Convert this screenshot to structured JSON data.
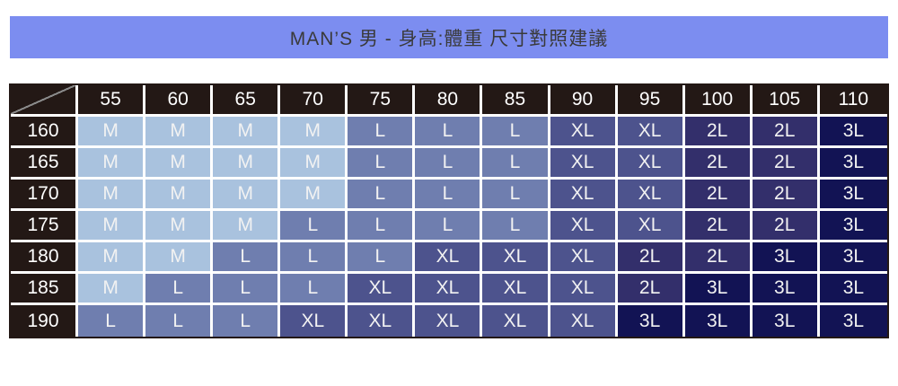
{
  "title_bar": {
    "text": "MAN’S 男 - 身高:體重 尺寸對照建議"
  },
  "chart_data": {
    "type": "table",
    "title": "MAN’S 男 - 身高:體重 尺寸對照建議",
    "column_headers": [
      "55",
      "60",
      "65",
      "70",
      "75",
      "80",
      "85",
      "90",
      "95",
      "100",
      "105",
      "110"
    ],
    "row_headers": [
      "160",
      "165",
      "170",
      "175",
      "180",
      "185",
      "190"
    ],
    "cells": [
      [
        "M",
        "M",
        "M",
        "M",
        "L",
        "L",
        "L",
        "XL",
        "XL",
        "2L",
        "2L",
        "3L"
      ],
      [
        "M",
        "M",
        "M",
        "M",
        "L",
        "L",
        "L",
        "XL",
        "XL",
        "2L",
        "2L",
        "3L"
      ],
      [
        "M",
        "M",
        "M",
        "M",
        "L",
        "L",
        "L",
        "XL",
        "XL",
        "2L",
        "2L",
        "3L"
      ],
      [
        "M",
        "M",
        "M",
        "L",
        "L",
        "L",
        "L",
        "XL",
        "XL",
        "2L",
        "2L",
        "3L"
      ],
      [
        "M",
        "M",
        "L",
        "L",
        "L",
        "XL",
        "XL",
        "XL",
        "2L",
        "2L",
        "3L",
        "3L"
      ],
      [
        "M",
        "L",
        "L",
        "L",
        "XL",
        "XL",
        "XL",
        "XL",
        "2L",
        "3L",
        "3L",
        "3L"
      ],
      [
        "L",
        "L",
        "L",
        "XL",
        "XL",
        "XL",
        "XL",
        "XL",
        "3L",
        "3L",
        "3L",
        "3L"
      ]
    ],
    "legend_note": "",
    "grid": "on"
  },
  "colors": {
    "title_bg": "#7c8df0",
    "title_text": "#3a3a3a",
    "header_bg": "#231815",
    "header_text": "#ffffff",
    "cell_text": "#f2f2f2",
    "border": "#ffffff",
    "diagonal_line": "#8a8a8a",
    "size_M": "#a9c2de",
    "size_L": "#6f7eaf",
    "size_XL": "#4d538d",
    "size_2L": "#332f6b",
    "size_3L": "#121354"
  }
}
